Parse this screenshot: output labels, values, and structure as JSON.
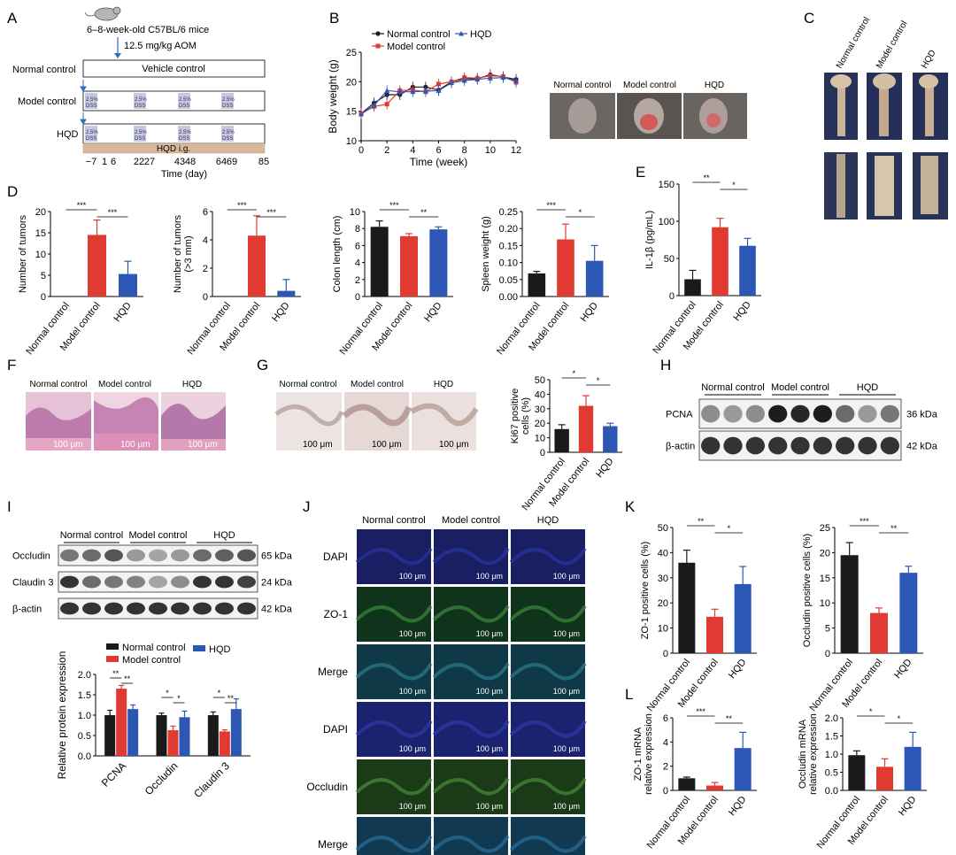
{
  "panels": {
    "A": "A",
    "B": "B",
    "C": "C",
    "D": "D",
    "E": "E",
    "F": "F",
    "G": "G",
    "H": "H",
    "I": "I",
    "J": "J",
    "K": "K",
    "L": "L"
  },
  "groups": [
    "Normal control",
    "Model control",
    "HQD"
  ],
  "colors": {
    "normal": "#1a1a1a",
    "model": "#e03a33",
    "hqd": "#2d57b4",
    "dss": "#c7c7e8",
    "hqd_bar": "#d9b99b",
    "tissue": "#c98fae"
  },
  "schematic": {
    "mice_label": "6–8-week-old C57BL/6 mice",
    "aom_label": "12.5 mg/kg AOM",
    "rows": [
      "Normal control",
      "Model control",
      "HQD"
    ],
    "vehicle_label": "Vehicle control",
    "dss_line1": "2.5%",
    "dss_line2": "DSS",
    "hqd_ig": "HQD i.g.",
    "ticks": [
      "−7",
      "1",
      "6",
      "22",
      "27",
      "43",
      "48",
      "64",
      "69",
      "85"
    ],
    "axis_title": "Time (day)"
  },
  "micro": {
    "he_scale": "100 μm",
    "ki67_scale": "100 μm",
    "if_scale": "100 μm",
    "if_rows": [
      "DAPI",
      "ZO-1",
      "Merge",
      "DAPI",
      "Occludin",
      "Merge"
    ]
  },
  "western_H": {
    "groups": [
      "Normal control",
      "Model control",
      "HQD"
    ],
    "rows": [
      {
        "name": "PCNA",
        "kda": "36 kDa"
      },
      {
        "name": "β-actin",
        "kda": "42 kDa"
      }
    ]
  },
  "western_I": {
    "groups": [
      "Normal control",
      "Model control",
      "HQD"
    ],
    "rows": [
      {
        "name": "Occludin",
        "kda": "65 kDa"
      },
      {
        "name": "Claudin 3",
        "kda": "24 kDa"
      },
      {
        "name": "β-actin",
        "kda": "42 kDa"
      }
    ]
  },
  "chart_data": [
    {
      "id": "B",
      "type": "line",
      "xlabel": "Time (week)",
      "ylabel": "Body weight (g)",
      "xlim": [
        0,
        12
      ],
      "ylim": [
        10,
        25
      ],
      "xticks": [
        "0",
        "2",
        "4",
        "6",
        "8",
        "10",
        "12"
      ],
      "yticks": [
        "10",
        "15",
        "20",
        "25"
      ],
      "legend": [
        "Normal control",
        "Model control",
        "HQD"
      ],
      "x": [
        0,
        1,
        2,
        3,
        4,
        5,
        6,
        7,
        8,
        9,
        10,
        11,
        12
      ],
      "series": [
        {
          "name": "Normal control",
          "values": [
            14.6,
            16.4,
            17.8,
            17.8,
            19.1,
            19.1,
            18.6,
            20.0,
            20.5,
            20.5,
            21.2,
            20.8,
            20.4
          ]
        },
        {
          "name": "Model control",
          "values": [
            14.6,
            15.8,
            16.2,
            18.5,
            18.6,
            18.3,
            19.6,
            20.0,
            20.7,
            20.6,
            21.0,
            20.9,
            19.9
          ]
        },
        {
          "name": "HQD",
          "values": [
            14.5,
            16.0,
            18.5,
            18.3,
            18.3,
            18.4,
            18.5,
            19.8,
            20.2,
            20.4,
            20.6,
            20.7,
            20.2
          ]
        }
      ]
    },
    {
      "id": "D1",
      "type": "bar",
      "ylabel": "Number of tumors",
      "ylim": [
        0,
        20
      ],
      "yticks": [
        "0",
        "5",
        "10",
        "15",
        "20"
      ],
      "categories": [
        "Normal control",
        "Model control",
        "HQD"
      ],
      "values": [
        0,
        14.5,
        5.3
      ],
      "errors": [
        0,
        3.5,
        3.0
      ],
      "sig": [
        {
          "from": 0,
          "to": 1,
          "label": "***"
        },
        {
          "from": 1,
          "to": 2,
          "label": "***"
        }
      ]
    },
    {
      "id": "D2",
      "type": "bar",
      "ylabel": "Number of tumors",
      "ylabel2": "(>3 mm)",
      "ylim": [
        0,
        6
      ],
      "yticks": [
        "0",
        "2",
        "4",
        "6"
      ],
      "categories": [
        "Normal control",
        "Model control",
        "HQD"
      ],
      "values": [
        0,
        4.3,
        0.4
      ],
      "errors": [
        0,
        1.4,
        0.8
      ],
      "sig": [
        {
          "from": 0,
          "to": 1,
          "label": "***"
        },
        {
          "from": 1,
          "to": 2,
          "label": "***"
        }
      ]
    },
    {
      "id": "D3",
      "type": "bar",
      "ylabel": "Colon length (cm)",
      "ylim": [
        0,
        10
      ],
      "yticks": [
        "0",
        "2",
        "4",
        "6",
        "8",
        "10"
      ],
      "categories": [
        "Normal control",
        "Model control",
        "HQD"
      ],
      "values": [
        8.2,
        7.1,
        7.9
      ],
      "errors": [
        0.7,
        0.3,
        0.3
      ],
      "sig": [
        {
          "from": 0,
          "to": 1,
          "label": "***"
        },
        {
          "from": 1,
          "to": 2,
          "label": "**"
        }
      ]
    },
    {
      "id": "D4",
      "type": "bar",
      "ylabel": "Spleen weight (g)",
      "ylim": [
        0,
        0.25
      ],
      "yticks": [
        "0.00",
        "0.05",
        "0.10",
        "0.15",
        "0.20",
        "0.25"
      ],
      "categories": [
        "Normal control",
        "Model control",
        "HQD"
      ],
      "values": [
        0.068,
        0.168,
        0.105
      ],
      "errors": [
        0.006,
        0.045,
        0.045
      ],
      "sig": [
        {
          "from": 0,
          "to": 1,
          "label": "***"
        },
        {
          "from": 1,
          "to": 2,
          "label": "*"
        }
      ]
    },
    {
      "id": "E",
      "type": "bar",
      "ylabel": "IL-1β (pg/mL)",
      "ylim": [
        0,
        150
      ],
      "yticks": [
        "0",
        "50",
        "100",
        "150"
      ],
      "categories": [
        "Normal control",
        "Model control",
        "HQD"
      ],
      "values": [
        22,
        92,
        67
      ],
      "errors": [
        12,
        12,
        10
      ],
      "sig": [
        {
          "from": 0,
          "to": 1,
          "label": "**"
        },
        {
          "from": 1,
          "to": 2,
          "label": "*"
        }
      ]
    },
    {
      "id": "G",
      "type": "bar",
      "ylabel": "Ki67 positive",
      "ylabel2": "cells (%)",
      "ylim": [
        0,
        50
      ],
      "yticks": [
        "0",
        "10",
        "20",
        "30",
        "40",
        "50"
      ],
      "categories": [
        "Normal control",
        "Model control",
        "HQD"
      ],
      "values": [
        16,
        32,
        18
      ],
      "errors": [
        3,
        7,
        2
      ],
      "sig": [
        {
          "from": 0,
          "to": 1,
          "label": "*"
        },
        {
          "from": 1,
          "to": 2,
          "label": "*"
        }
      ]
    },
    {
      "id": "I",
      "type": "grouped-bar",
      "ylabel": "Relative protein expression",
      "ylim": [
        0,
        2.0
      ],
      "yticks": [
        "0.0",
        "0.5",
        "1.0",
        "1.5",
        "2.0"
      ],
      "categories": [
        "PCNA",
        "Occludin",
        "Claudin 3"
      ],
      "series": [
        {
          "name": "Normal control",
          "values": [
            1.0,
            1.0,
            1.0
          ],
          "errors": [
            0.12,
            0.05,
            0.08
          ]
        },
        {
          "name": "Model control",
          "values": [
            1.65,
            0.63,
            0.6
          ],
          "errors": [
            0.08,
            0.1,
            0.04
          ]
        },
        {
          "name": "HQD",
          "values": [
            1.15,
            0.95,
            1.15
          ],
          "errors": [
            0.1,
            0.15,
            0.25
          ]
        }
      ],
      "sig": [
        {
          "cat": 0,
          "from": 0,
          "to": 1,
          "label": "**"
        },
        {
          "cat": 0,
          "from": 1,
          "to": 2,
          "label": "**"
        },
        {
          "cat": 1,
          "from": 0,
          "to": 1,
          "label": "*"
        },
        {
          "cat": 1,
          "from": 1,
          "to": 2,
          "label": "*"
        },
        {
          "cat": 2,
          "from": 0,
          "to": 1,
          "label": "*"
        },
        {
          "cat": 2,
          "from": 1,
          "to": 2,
          "label": "**"
        }
      ]
    },
    {
      "id": "K1",
      "type": "bar",
      "ylabel": "ZO-1 positive cells (%)",
      "ylim": [
        0,
        50
      ],
      "yticks": [
        "0",
        "10",
        "20",
        "30",
        "40",
        "50"
      ],
      "categories": [
        "Normal control",
        "Model control",
        "HQD"
      ],
      "values": [
        36,
        14.5,
        27.5
      ],
      "errors": [
        5,
        3,
        7
      ],
      "sig": [
        {
          "from": 0,
          "to": 1,
          "label": "**"
        },
        {
          "from": 1,
          "to": 2,
          "label": "*"
        }
      ]
    },
    {
      "id": "K2",
      "type": "bar",
      "ylabel": "Occludin positive cells (%)",
      "ylim": [
        0,
        25
      ],
      "yticks": [
        "0",
        "5",
        "10",
        "15",
        "20",
        "25"
      ],
      "categories": [
        "Normal control",
        "Model control",
        "HQD"
      ],
      "values": [
        19.5,
        8,
        16
      ],
      "errors": [
        2.5,
        1,
        1.3
      ],
      "sig": [
        {
          "from": 0,
          "to": 1,
          "label": "***"
        },
        {
          "from": 1,
          "to": 2,
          "label": "**"
        }
      ]
    },
    {
      "id": "L1",
      "type": "bar",
      "ylabel": "ZO-1 mRNA",
      "ylabel2": "relative expression",
      "ylim": [
        0,
        6
      ],
      "yticks": [
        "0",
        "2",
        "4",
        "6"
      ],
      "categories": [
        "Normal control",
        "Model control",
        "HQD"
      ],
      "values": [
        1.0,
        0.4,
        3.5
      ],
      "errors": [
        0.1,
        0.25,
        1.3
      ],
      "sig": [
        {
          "from": 0,
          "to": 1,
          "label": "***"
        },
        {
          "from": 1,
          "to": 2,
          "label": "**"
        }
      ]
    },
    {
      "id": "L2",
      "type": "bar",
      "ylabel": "Occludin mRNA",
      "ylabel2": "relative expression",
      "ylim": [
        0,
        2.0
      ],
      "yticks": [
        "0.0",
        "0.5",
        "1.0",
        "1.5",
        "2.0"
      ],
      "categories": [
        "Normal control",
        "Model control",
        "HQD"
      ],
      "values": [
        0.97,
        0.65,
        1.2
      ],
      "errors": [
        0.12,
        0.22,
        0.4
      ],
      "sig": [
        {
          "from": 0,
          "to": 1,
          "label": "*"
        },
        {
          "from": 1,
          "to": 2,
          "label": "*"
        }
      ]
    }
  ]
}
